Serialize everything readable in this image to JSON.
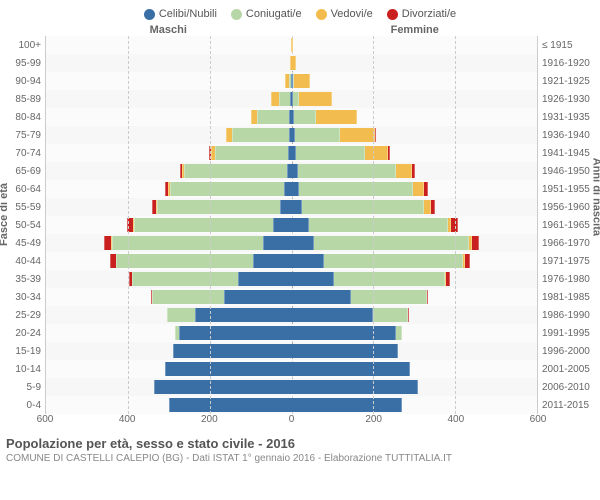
{
  "chart": {
    "type": "population-pyramid",
    "background_color": "#ffffff",
    "plot_background": "#f7f7f7",
    "grid_color": "#cccccc",
    "text_color": "#666666",
    "max_value": 600,
    "x_ticks": [
      600,
      400,
      200,
      0,
      200,
      400,
      600
    ],
    "legend": [
      {
        "label": "Celibi/Nubili",
        "color": "#3a6fa6"
      },
      {
        "label": "Coniugati/e",
        "color": "#b8d7a6"
      },
      {
        "label": "Vedovi/e",
        "color": "#f2bd4e"
      },
      {
        "label": "Divorziati/e",
        "color": "#c9201f"
      }
    ],
    "header_male": "Maschi",
    "header_female": "Femmine",
    "axis_left_title": "Fasce di età",
    "axis_right_title": "Anni di nascita",
    "rows": [
      {
        "age": "100+",
        "birth": "≤ 1915",
        "m": [
          0,
          0,
          2,
          0
        ],
        "f": [
          0,
          0,
          3,
          0
        ]
      },
      {
        "age": "95-99",
        "birth": "1916-1920",
        "m": [
          0,
          0,
          3,
          0
        ],
        "f": [
          0,
          0,
          12,
          0
        ]
      },
      {
        "age": "90-94",
        "birth": "1921-1925",
        "m": [
          2,
          3,
          10,
          0
        ],
        "f": [
          2,
          3,
          40,
          0
        ]
      },
      {
        "age": "85-89",
        "birth": "1926-1930",
        "m": [
          3,
          28,
          18,
          0
        ],
        "f": [
          3,
          15,
          80,
          0
        ]
      },
      {
        "age": "80-84",
        "birth": "1931-1935",
        "m": [
          5,
          80,
          15,
          0
        ],
        "f": [
          5,
          55,
          100,
          0
        ]
      },
      {
        "age": "75-79",
        "birth": "1936-1940",
        "m": [
          6,
          140,
          15,
          0
        ],
        "f": [
          8,
          110,
          85,
          3
        ]
      },
      {
        "age": "70-74",
        "birth": "1941-1945",
        "m": [
          8,
          180,
          10,
          3
        ],
        "f": [
          10,
          170,
          55,
          5
        ]
      },
      {
        "age": "65-69",
        "birth": "1946-1950",
        "m": [
          12,
          250,
          6,
          5
        ],
        "f": [
          15,
          240,
          40,
          8
        ]
      },
      {
        "age": "60-64",
        "birth": "1951-1955",
        "m": [
          18,
          280,
          4,
          8
        ],
        "f": [
          18,
          280,
          25,
          10
        ]
      },
      {
        "age": "55-59",
        "birth": "1956-1960",
        "m": [
          28,
          300,
          3,
          10
        ],
        "f": [
          25,
          300,
          15,
          12
        ]
      },
      {
        "age": "50-54",
        "birth": "1961-1965",
        "m": [
          45,
          340,
          2,
          15
        ],
        "f": [
          42,
          340,
          8,
          16
        ]
      },
      {
        "age": "45-49",
        "birth": "1966-1970",
        "m": [
          70,
          370,
          1,
          18
        ],
        "f": [
          55,
          380,
          5,
          18
        ]
      },
      {
        "age": "40-44",
        "birth": "1971-1975",
        "m": [
          95,
          335,
          0,
          14
        ],
        "f": [
          80,
          340,
          3,
          14
        ]
      },
      {
        "age": "35-39",
        "birth": "1976-1980",
        "m": [
          130,
          260,
          0,
          8
        ],
        "f": [
          105,
          270,
          2,
          10
        ]
      },
      {
        "age": "30-34",
        "birth": "1981-1985",
        "m": [
          165,
          175,
          0,
          3
        ],
        "f": [
          145,
          185,
          0,
          4
        ]
      },
      {
        "age": "25-29",
        "birth": "1986-1990",
        "m": [
          235,
          70,
          0,
          0
        ],
        "f": [
          200,
          85,
          0,
          2
        ]
      },
      {
        "age": "20-24",
        "birth": "1991-1995",
        "m": [
          275,
          10,
          0,
          0
        ],
        "f": [
          255,
          15,
          0,
          0
        ]
      },
      {
        "age": "15-19",
        "birth": "1996-2000",
        "m": [
          290,
          0,
          0,
          0
        ],
        "f": [
          260,
          0,
          0,
          0
        ]
      },
      {
        "age": "10-14",
        "birth": "2001-2005",
        "m": [
          310,
          0,
          0,
          0
        ],
        "f": [
          290,
          0,
          0,
          0
        ]
      },
      {
        "age": "5-9",
        "birth": "2006-2010",
        "m": [
          335,
          0,
          0,
          0
        ],
        "f": [
          310,
          0,
          0,
          0
        ]
      },
      {
        "age": "0-4",
        "birth": "2011-2015",
        "m": [
          300,
          0,
          0,
          0
        ],
        "f": [
          270,
          0,
          0,
          0
        ]
      }
    ],
    "footer_title": "Popolazione per età, sesso e stato civile - 2016",
    "footer_sub": "COMUNE DI CASTELLI CALEPIO (BG) - Dati ISTAT 1° gennaio 2016 - Elaborazione TUTTITALIA.IT"
  }
}
